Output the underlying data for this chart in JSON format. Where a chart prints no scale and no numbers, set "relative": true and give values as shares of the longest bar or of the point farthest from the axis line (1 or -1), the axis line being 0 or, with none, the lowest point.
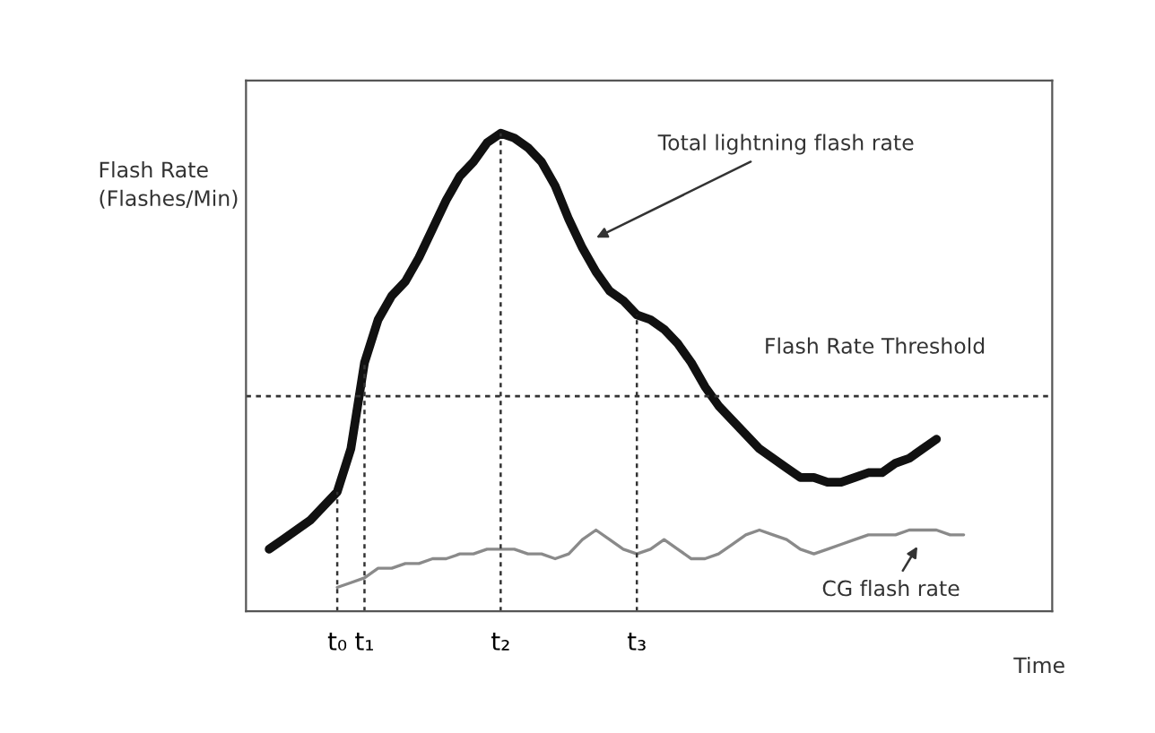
{
  "chart_data": {
    "type": "line",
    "relative": true,
    "ylabel": "Flash Rate\n(Flashes/Min)",
    "xlabel": "Time",
    "categories": [
      null,
      null,
      null,
      null,
      null,
      null,
      "t₀",
      null,
      "t₁",
      null,
      null,
      null,
      null,
      null,
      null,
      null,
      null,
      null,
      "t₂",
      null,
      null,
      null,
      null,
      null,
      null,
      null,
      null,
      null,
      "t₃",
      null,
      null,
      null,
      null,
      null,
      null,
      null,
      null,
      null,
      null,
      null,
      null,
      null,
      null,
      null,
      null,
      null,
      null,
      null,
      null,
      null,
      null,
      null,
      null,
      null,
      null,
      null,
      null,
      null,
      null
    ],
    "series": [
      {
        "color": "#111111",
        "values": [
          null,
          0.13,
          0.15,
          0.17,
          0.19,
          0.22,
          0.25,
          0.34,
          0.52,
          0.61,
          0.66,
          0.69,
          0.74,
          0.8,
          0.86,
          0.91,
          0.94,
          0.98,
          1.0,
          0.99,
          0.97,
          0.94,
          0.89,
          0.82,
          0.76,
          0.71,
          0.67,
          0.65,
          0.62,
          0.61,
          0.59,
          0.56,
          0.52,
          0.47,
          0.43,
          0.4,
          0.37,
          0.34,
          0.32,
          0.3,
          0.28,
          0.28,
          0.27,
          0.27,
          0.28,
          0.29,
          0.29,
          0.31,
          0.32,
          0.34,
          0.36,
          null,
          null,
          null,
          null,
          null,
          null,
          null,
          null
        ]
      },
      {
        "color": "#8a8a8a",
        "values": [
          null,
          null,
          null,
          null,
          null,
          null,
          0.05,
          0.06,
          0.07,
          0.09,
          0.09,
          0.1,
          0.1,
          0.11,
          0.11,
          0.12,
          0.12,
          0.13,
          0.13,
          0.13,
          0.12,
          0.12,
          0.11,
          0.12,
          0.15,
          0.17,
          0.15,
          0.13,
          0.12,
          0.13,
          0.15,
          0.13,
          0.11,
          0.11,
          0.12,
          0.14,
          0.16,
          0.17,
          0.16,
          0.15,
          0.13,
          0.12,
          0.13,
          0.14,
          0.15,
          0.16,
          0.16,
          0.16,
          0.17,
          0.17,
          0.17,
          0.16,
          0.16,
          null,
          null,
          null,
          null,
          null,
          null
        ]
      }
    ],
    "ref_lines": [
      {
        "axis": "y",
        "value": 0.45,
        "label": "Flash Rate Threshold",
        "line_style": "dotted",
        "color": "#333333"
      },
      {
        "axis": "x",
        "value": "t₀",
        "line_style": "dotted",
        "color": "#333333"
      },
      {
        "axis": "x",
        "value": "t₁",
        "line_style": "dotted",
        "color": "#333333"
      },
      {
        "axis": "x",
        "value": "t₂",
        "line_style": "dotted",
        "color": "#333333"
      },
      {
        "axis": "x",
        "value": "t₃",
        "line_style": "dotted",
        "color": "#333333"
      }
    ],
    "annotations": [
      "Total lightning flash rate",
      "CG flash rate"
    ],
    "grid": false,
    "legend": false,
    "line_style": "solid",
    "marker": "none"
  }
}
